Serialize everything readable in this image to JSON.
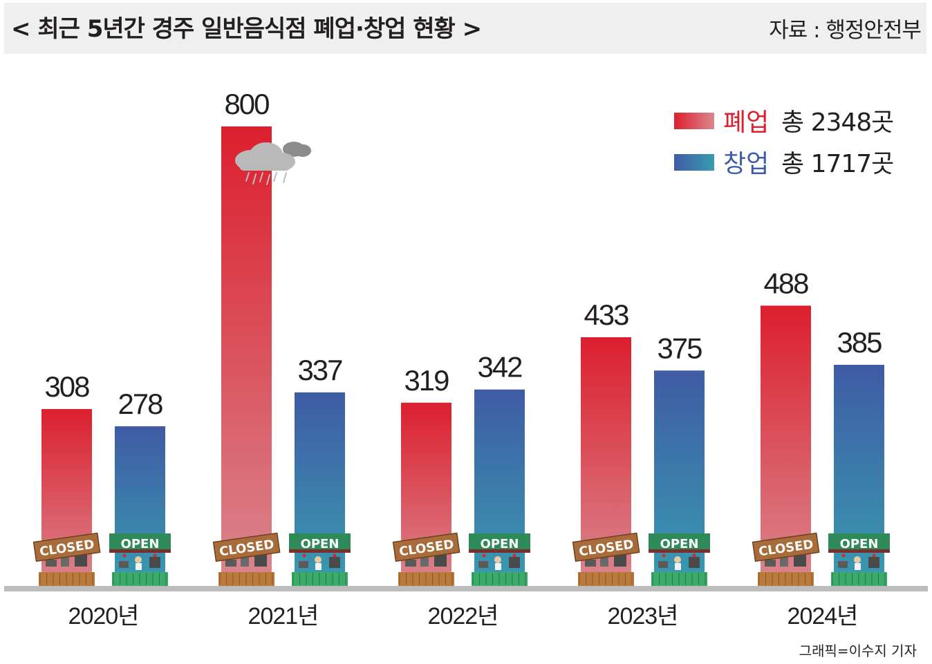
{
  "title": "< 최근 5년간 경주 일반음식점 폐업·창업 현황 >",
  "source": "자료 : 행정안전부",
  "credit": "그래픽=이수지 기자",
  "colors": {
    "closed_top": "#dc1f2e",
    "closed_bottom": "#d9878f",
    "open_top": "#3f5ba5",
    "open_bottom": "#389cb0",
    "closed_text": "#dc1f2e",
    "open_text": "#3f5ba5"
  },
  "chart_data": {
    "type": "bar",
    "categories": [
      "2020년",
      "2021년",
      "2022년",
      "2023년",
      "2024년"
    ],
    "series": [
      {
        "name": "폐업",
        "values": [
          308,
          800,
          319,
          433,
          488
        ]
      },
      {
        "name": "창업",
        "values": [
          278,
          337,
          342,
          375,
          385
        ]
      }
    ],
    "ylim": [
      0,
      800
    ],
    "grid": false,
    "legend_position": "top-right",
    "legend": [
      {
        "label": "폐업",
        "total_label": "총 2348곳"
      },
      {
        "label": "창업",
        "total_label": "총 1717곳"
      }
    ],
    "sign_labels": {
      "closed": "CLOSED",
      "open": "OPEN"
    }
  }
}
